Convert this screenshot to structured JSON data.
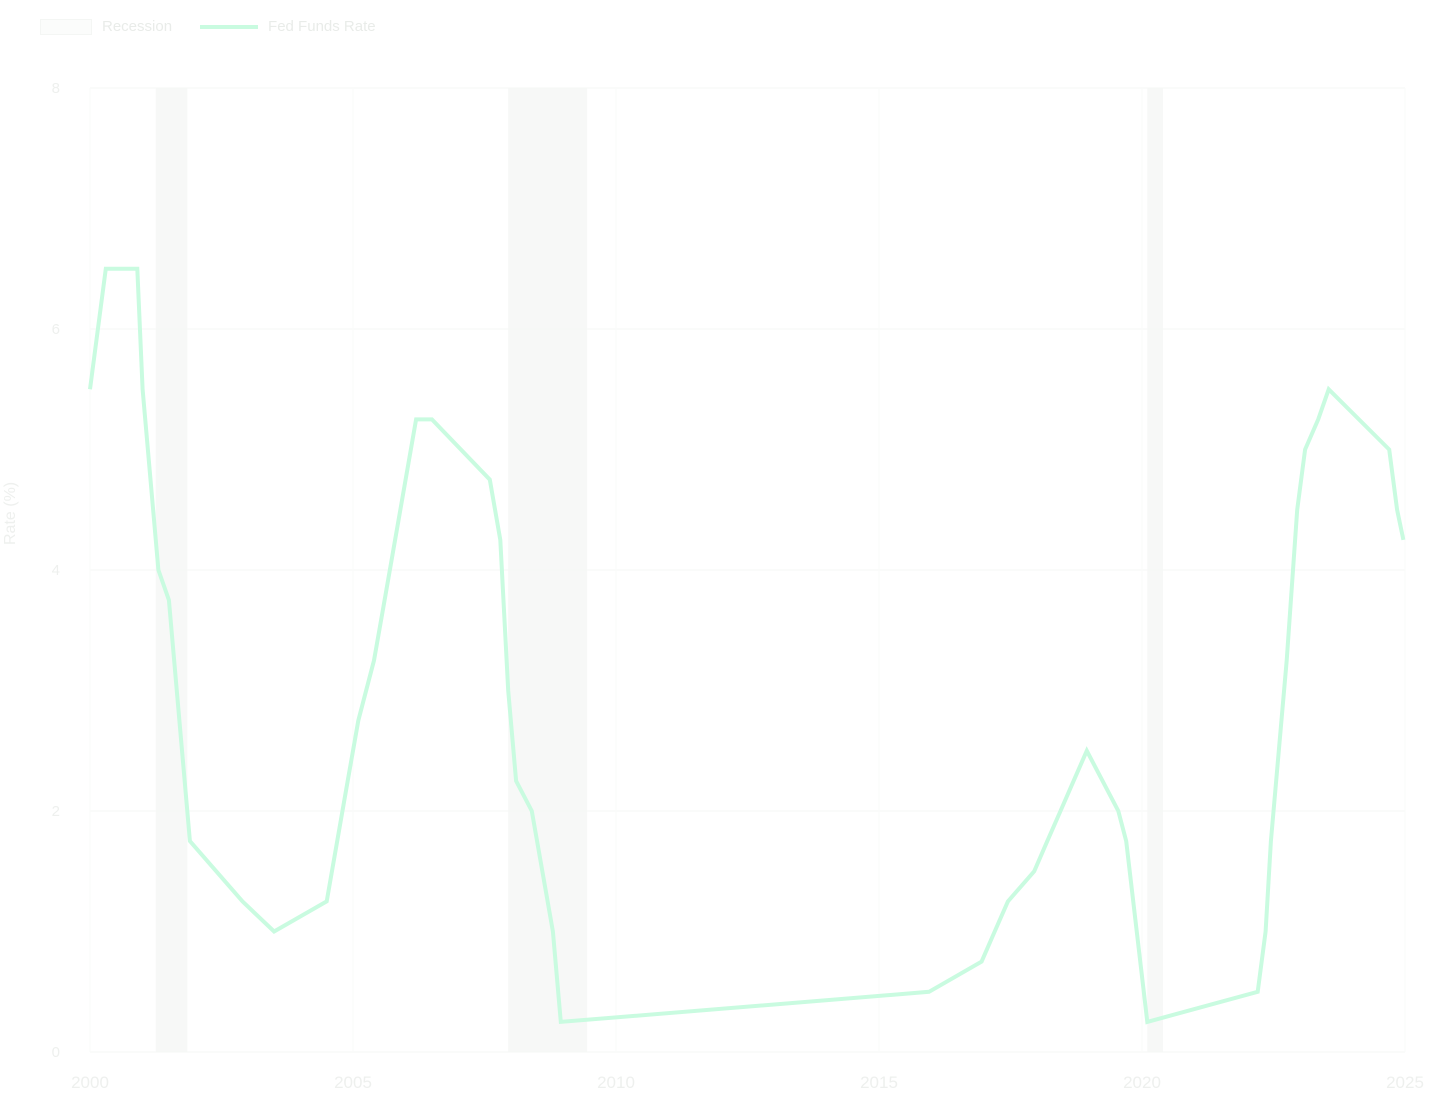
{
  "chart_data": {
    "type": "line",
    "legend": [
      {
        "label": "Recession",
        "kind": "shaded-band",
        "color": "#f7f8f7"
      },
      {
        "label": "Fed Funds Rate",
        "kind": "line",
        "color": "#c9fbe0"
      }
    ],
    "ylabel": "Rate (%)",
    "xlim": [
      2000,
      2025
    ],
    "ylim": [
      0,
      8
    ],
    "x_ticks": [
      "2000",
      "2005",
      "2010",
      "2015",
      "2020",
      "2025"
    ],
    "y_ticks": [
      0,
      2,
      4,
      6,
      8
    ],
    "grid": true,
    "legend_position": "top-left",
    "recession_bands": [
      [
        2001.25,
        2001.85
      ],
      [
        2007.95,
        2009.45
      ],
      [
        2020.1,
        2020.4
      ]
    ],
    "series": [
      {
        "name": "Fed Funds Rate",
        "color": "#c9fbe0",
        "points": [
          [
            2000.0,
            5.5
          ],
          [
            2000.15,
            6.0
          ],
          [
            2000.3,
            6.5
          ],
          [
            2000.9,
            6.5
          ],
          [
            2001.0,
            5.5
          ],
          [
            2001.3,
            4.0
          ],
          [
            2001.5,
            3.75
          ],
          [
            2001.9,
            1.75
          ],
          [
            2002.9,
            1.25
          ],
          [
            2003.5,
            1.0
          ],
          [
            2004.5,
            1.25
          ],
          [
            2004.7,
            1.75
          ],
          [
            2004.9,
            2.25
          ],
          [
            2005.1,
            2.75
          ],
          [
            2005.4,
            3.25
          ],
          [
            2005.6,
            3.75
          ],
          [
            2005.8,
            4.25
          ],
          [
            2006.0,
            4.75
          ],
          [
            2006.2,
            5.25
          ],
          [
            2006.5,
            5.25
          ],
          [
            2007.6,
            4.75
          ],
          [
            2007.8,
            4.25
          ],
          [
            2007.95,
            3.0
          ],
          [
            2008.1,
            2.25
          ],
          [
            2008.4,
            2.0
          ],
          [
            2008.8,
            1.0
          ],
          [
            2008.95,
            0.25
          ],
          [
            2015.95,
            0.5
          ],
          [
            2016.95,
            0.75
          ],
          [
            2017.2,
            1.0
          ],
          [
            2017.45,
            1.25
          ],
          [
            2017.95,
            1.5
          ],
          [
            2018.2,
            1.75
          ],
          [
            2018.45,
            2.0
          ],
          [
            2018.7,
            2.25
          ],
          [
            2018.95,
            2.5
          ],
          [
            2019.55,
            2.0
          ],
          [
            2019.7,
            1.75
          ],
          [
            2020.1,
            0.25
          ],
          [
            2022.2,
            0.5
          ],
          [
            2022.35,
            1.0
          ],
          [
            2022.45,
            1.75
          ],
          [
            2022.6,
            2.5
          ],
          [
            2022.75,
            3.25
          ],
          [
            2022.95,
            4.5
          ],
          [
            2023.1,
            5.0
          ],
          [
            2023.35,
            5.25
          ],
          [
            2023.55,
            5.5
          ],
          [
            2024.7,
            5.0
          ],
          [
            2024.85,
            4.5
          ],
          [
            2024.97,
            4.25
          ]
        ]
      }
    ]
  }
}
